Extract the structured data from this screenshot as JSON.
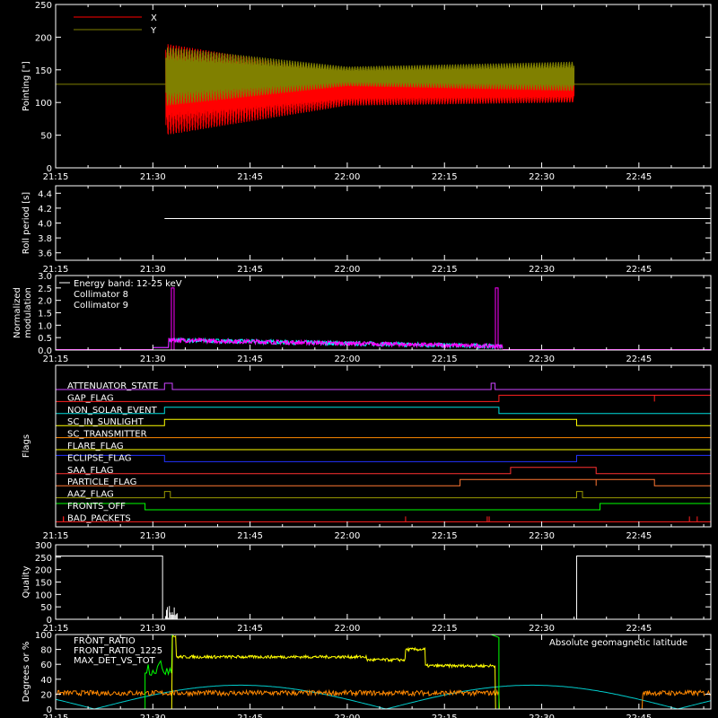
{
  "time_ticks": [
    "21:15",
    "21:30",
    "21:45",
    "22:00",
    "22:15",
    "22:30",
    "22:45"
  ],
  "chart_data": [
    {
      "type": "line",
      "ylabel": "Pointing [\"]",
      "ylim": [
        0,
        250
      ],
      "yticks": [
        "0",
        "50",
        "100",
        "150",
        "200",
        "250"
      ],
      "xlim": [
        "21:15",
        "22:56"
      ],
      "series": [
        {
          "name": "X",
          "color": "#ff0000",
          "center": 120,
          "envelope": [
            [
              21.55,
              140,
              "21:32"
            ],
            [
              22.0,
              50,
              "22:00"
            ],
            [
              22.6,
              40,
              "22:35"
            ]
          ]
        },
        {
          "name": "Y",
          "color": "#808000",
          "center": 140,
          "envelope": [
            [
              21.55,
              90,
              "21:32"
            ],
            [
              22.0,
              30,
              "22:00"
            ],
            [
              22.6,
              45,
              "22:35"
            ]
          ]
        }
      ],
      "reference_line": 128,
      "data_start": "21:32",
      "data_end": "22:35"
    },
    {
      "type": "line",
      "ylabel": "Roll period [s]",
      "ylim": [
        3.5,
        4.5
      ],
      "yticks": [
        "3.6",
        "3.8",
        "4.0",
        "4.2",
        "4.4"
      ],
      "series": [
        {
          "color": "#ffffff",
          "constant": 4.06
        }
      ]
    },
    {
      "type": "line",
      "ylabel": "Normalized modulation",
      "ylim": [
        0,
        3.0
      ],
      "yticks": [
        "0.0",
        "0.5",
        "1.0",
        "1.5",
        "2.0",
        "2.5",
        "3.0"
      ],
      "legend": {
        "title": "Energy band: 12-25 keV",
        "entries": [
          {
            "name": "Collimator 8",
            "color": "#00ffff"
          },
          {
            "name": "Collimator 9",
            "color": "#ff00ff"
          }
        ]
      },
      "spikes": [
        [
          "21:33",
          2.5
        ],
        [
          "22:23",
          2.5
        ]
      ]
    },
    {
      "type": "flags",
      "ylabel": "Flags",
      "flags": [
        {
          "name": "ATTENUATOR_STATE",
          "color": "#cc44ff"
        },
        {
          "name": "GAP_FLAG",
          "color": "#ff2020"
        },
        {
          "name": "NON_SOLAR_EVENT",
          "color": "#00dddd"
        },
        {
          "name": "SC_IN_SUNLIGHT",
          "color": "#ffff00"
        },
        {
          "name": "SC_TRANSMITTER",
          "color": "#ff8800"
        },
        {
          "name": "FLARE_FLAG",
          "color": "#ffff00"
        },
        {
          "name": "ECLIPSE_FLAG",
          "color": "#2233ff"
        },
        {
          "name": "SAA_FLAG",
          "color": "#ff3030"
        },
        {
          "name": "PARTICLE_FLAG",
          "color": "#ff7733"
        },
        {
          "name": "AAZ_FLAG",
          "color": "#999900"
        },
        {
          "name": "FRONTS_OFF",
          "color": "#00ff00"
        },
        {
          "name": "BAD_PACKETS",
          "color": "#ff2020"
        }
      ]
    },
    {
      "type": "line",
      "ylabel": "Quality",
      "ylim": [
        0,
        300
      ],
      "yticks": [
        "0",
        "50",
        "100",
        "150",
        "200",
        "250",
        "300"
      ],
      "series": [
        {
          "color": "#ffffff"
        }
      ]
    },
    {
      "type": "line",
      "ylabel": "Degrees or %",
      "ylim": [
        0,
        100
      ],
      "yticks": [
        "0",
        "20",
        "40",
        "60",
        "80",
        "100"
      ],
      "series": [
        {
          "name": "FRONT_RATIO",
          "color": "#ffff00"
        },
        {
          "name": "FRONT_RATIO_1225",
          "color": "#00ff00"
        },
        {
          "name": "MAX_DET_VS_TOT",
          "color": "#ff8800"
        },
        {
          "name": "Absolute geomagnetic latitude",
          "color": "#00cccc"
        }
      ]
    }
  ]
}
